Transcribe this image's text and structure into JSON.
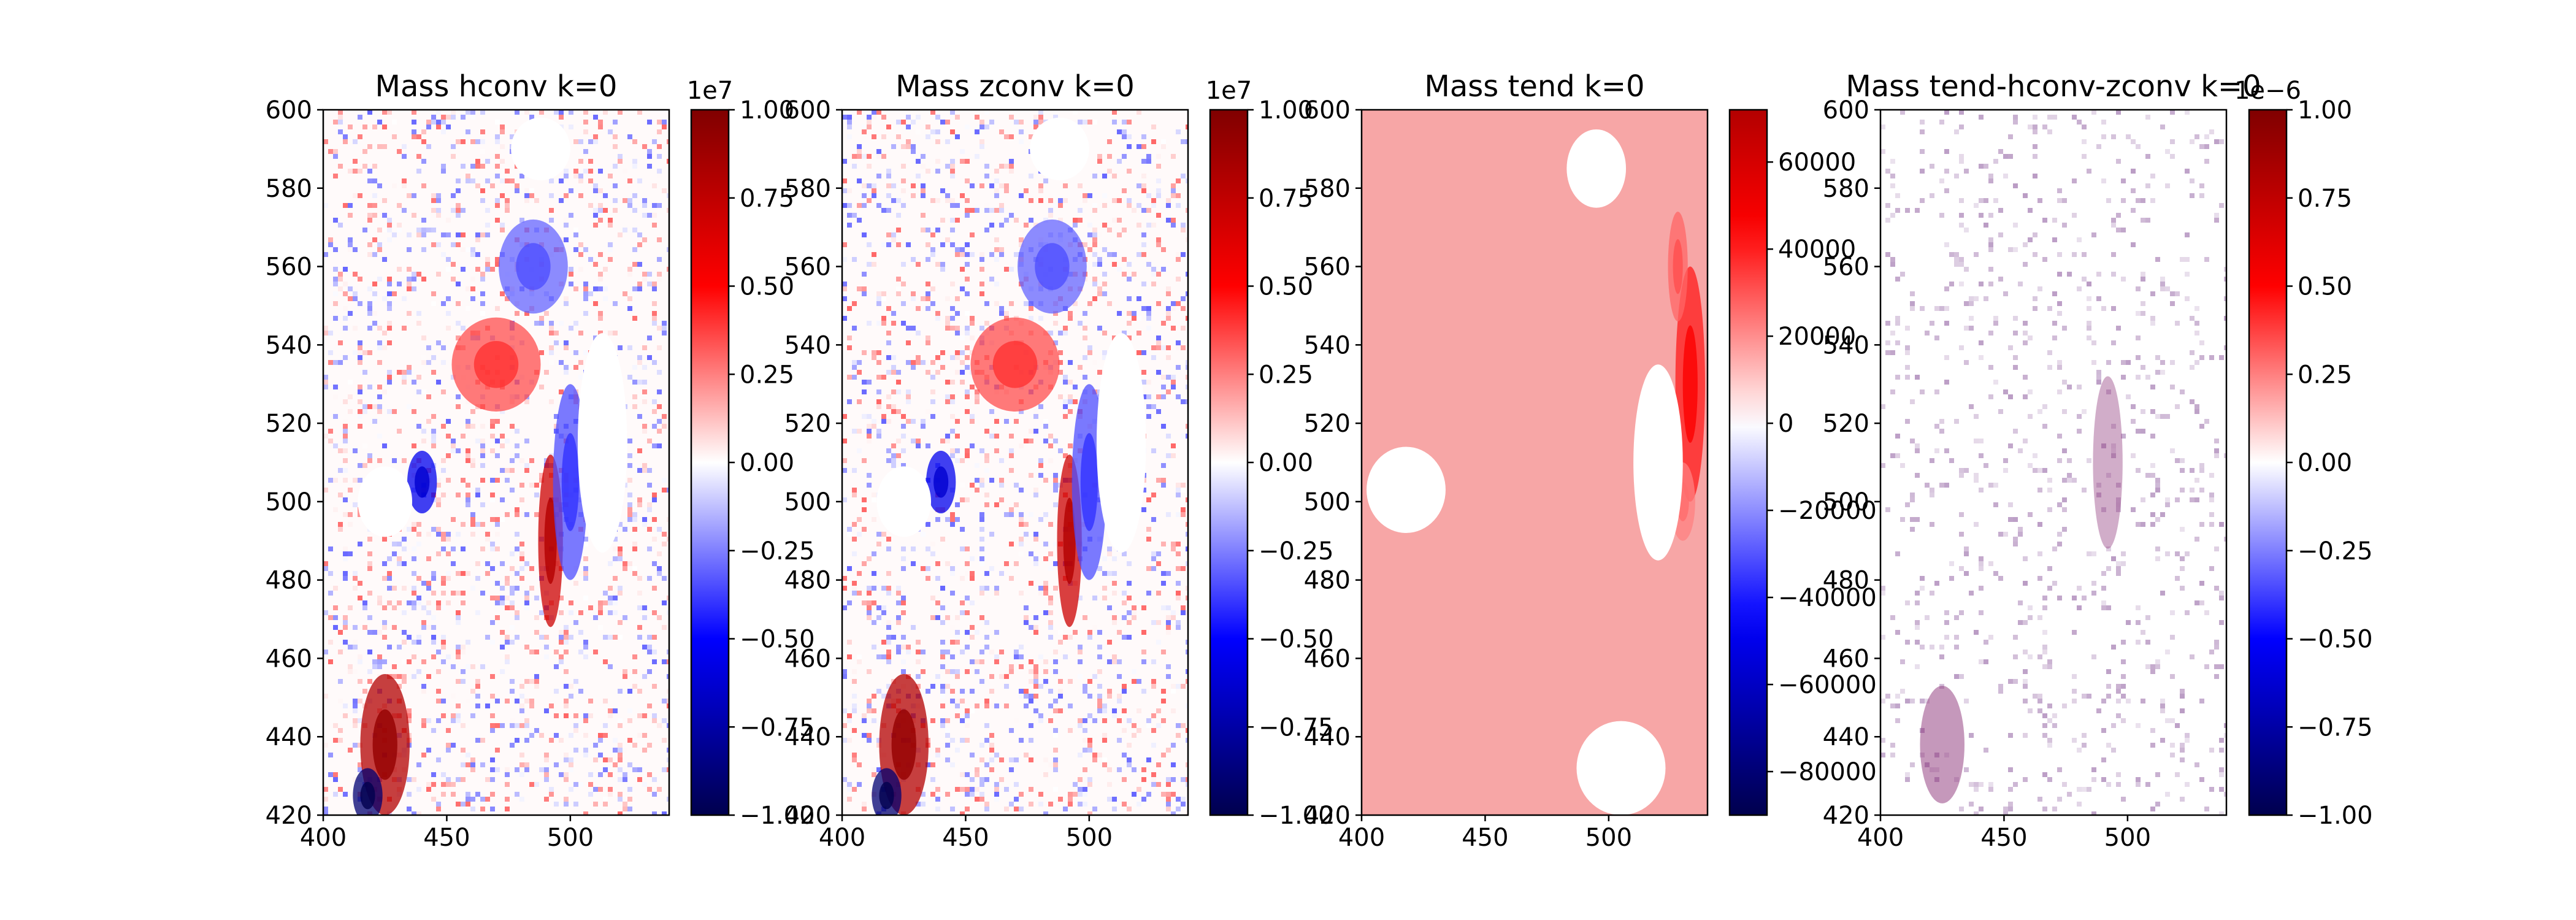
{
  "figure": {
    "background": "#ffffff"
  },
  "chart_data": [
    {
      "type": "heatmap",
      "title": "Mass hconv k=0",
      "xlabel": "",
      "ylabel": "",
      "xlim": [
        400,
        540
      ],
      "ylim": [
        420,
        600
      ],
      "x_ticks": [
        400,
        450,
        500
      ],
      "y_ticks": [
        420,
        440,
        460,
        480,
        500,
        520,
        540,
        560,
        580,
        600
      ],
      "colormap": "seismic",
      "colorbar": {
        "range": [
          -1.0,
          1.0
        ],
        "ticks": [
          -1.0,
          -0.75,
          -0.5,
          -0.25,
          0.0,
          0.25,
          0.5,
          0.75,
          1.0
        ],
        "tick_labels": [
          "−1.00",
          "−0.75",
          "−0.50",
          "−0.25",
          "0.00",
          "0.25",
          "0.50",
          "0.75",
          "1.00"
        ],
        "offset_label": "1e7"
      },
      "field": {
        "pattern": "anomaly",
        "background": "#fffafa",
        "blobs": [
          {
            "x": 425,
            "y": 438,
            "rx": 10,
            "ry": 18,
            "value": 0.8
          },
          {
            "x": 418,
            "y": 425,
            "rx": 6,
            "ry": 7,
            "value": -0.9
          },
          {
            "x": 492,
            "y": 490,
            "rx": 5,
            "ry": 22,
            "value": 0.7
          },
          {
            "x": 470,
            "y": 535,
            "rx": 18,
            "ry": 12,
            "value": 0.35
          },
          {
            "x": 485,
            "y": 560,
            "rx": 14,
            "ry": 12,
            "value": -0.3
          },
          {
            "x": 440,
            "y": 505,
            "rx": 6,
            "ry": 8,
            "value": -0.55
          },
          {
            "x": 500,
            "y": 505,
            "rx": 7,
            "ry": 25,
            "value": -0.35
          }
        ],
        "holes": [
          {
            "x": 425,
            "y": 500,
            "rx": 11,
            "ry": 9
          },
          {
            "x": 513,
            "y": 515,
            "rx": 10,
            "ry": 28
          },
          {
            "x": 488,
            "y": 590,
            "rx": 12,
            "ry": 8
          }
        ]
      }
    },
    {
      "type": "heatmap",
      "title": "Mass zconv k=0",
      "xlabel": "",
      "ylabel": "",
      "xlim": [
        400,
        540
      ],
      "ylim": [
        420,
        600
      ],
      "x_ticks": [
        400,
        450,
        500
      ],
      "y_ticks": [
        420,
        440,
        460,
        480,
        500,
        520,
        540,
        560,
        580,
        600
      ],
      "colormap": "seismic",
      "colorbar": {
        "range": [
          -1.0,
          1.0
        ],
        "ticks": [
          -1.0,
          -0.75,
          -0.5,
          -0.25,
          0.0,
          0.25,
          0.5,
          0.75,
          1.0
        ],
        "tick_labels": [
          "−1.00",
          "−0.75",
          "−0.50",
          "−0.25",
          "0.00",
          "0.25",
          "0.50",
          "0.75",
          "1.00"
        ],
        "offset_label": "1e7"
      },
      "field": {
        "pattern": "anomaly",
        "background": "#fffafa",
        "blobs": [
          {
            "x": 425,
            "y": 438,
            "rx": 10,
            "ry": 18,
            "value": 0.8
          },
          {
            "x": 418,
            "y": 425,
            "rx": 6,
            "ry": 7,
            "value": -0.9
          },
          {
            "x": 492,
            "y": 490,
            "rx": 5,
            "ry": 22,
            "value": 0.7
          },
          {
            "x": 470,
            "y": 535,
            "rx": 18,
            "ry": 12,
            "value": 0.35
          },
          {
            "x": 485,
            "y": 560,
            "rx": 14,
            "ry": 12,
            "value": -0.3
          },
          {
            "x": 440,
            "y": 505,
            "rx": 6,
            "ry": 8,
            "value": -0.55
          },
          {
            "x": 500,
            "y": 505,
            "rx": 7,
            "ry": 25,
            "value": -0.35
          }
        ],
        "holes": [
          {
            "x": 425,
            "y": 500,
            "rx": 11,
            "ry": 9
          },
          {
            "x": 513,
            "y": 515,
            "rx": 10,
            "ry": 28
          },
          {
            "x": 488,
            "y": 590,
            "rx": 12,
            "ry": 8
          }
        ]
      }
    },
    {
      "type": "heatmap",
      "title": "Mass tend k=0",
      "xlabel": "",
      "ylabel": "",
      "xlim": [
        400,
        540
      ],
      "ylim": [
        420,
        600
      ],
      "x_ticks": [
        400,
        450,
        500
      ],
      "y_ticks": [
        420,
        440,
        460,
        480,
        500,
        520,
        540,
        560,
        580,
        600
      ],
      "colormap": "seismic",
      "colorbar": {
        "range": [
          -90000,
          72000
        ],
        "ticks": [
          -80000,
          -60000,
          -40000,
          -20000,
          0,
          20000,
          40000,
          60000
        ],
        "tick_labels": [
          "−80000",
          "−60000",
          "−40000",
          "−20000",
          "0",
          "20000",
          "40000",
          "60000"
        ],
        "offset_label": ""
      },
      "field": {
        "pattern": "uniform",
        "background": "#f7a6a6",
        "blobs": [
          {
            "x": 533,
            "y": 530,
            "rx": 6,
            "ry": 30,
            "value": 0.45
          },
          {
            "x": 528,
            "y": 560,
            "rx": 4,
            "ry": 14,
            "value": 0.3
          },
          {
            "x": 530,
            "y": 500,
            "rx": 5,
            "ry": 10,
            "value": 0.25
          }
        ],
        "holes": [
          {
            "x": 418,
            "y": 503,
            "rx": 16,
            "ry": 11
          },
          {
            "x": 520,
            "y": 510,
            "rx": 10,
            "ry": 25
          },
          {
            "x": 495,
            "y": 585,
            "rx": 12,
            "ry": 10
          },
          {
            "x": 505,
            "y": 432,
            "rx": 18,
            "ry": 12
          }
        ]
      }
    },
    {
      "type": "heatmap",
      "title": "Mass tend-hconv-zconv k=0",
      "xlabel": "",
      "ylabel": "",
      "xlim": [
        400,
        540
      ],
      "ylim": [
        420,
        600
      ],
      "x_ticks": [
        400,
        450,
        500
      ],
      "y_ticks": [
        420,
        440,
        460,
        480,
        500,
        520,
        540,
        560,
        580,
        600
      ],
      "colormap": "seismic",
      "colorbar": {
        "range": [
          -1.0,
          1.0
        ],
        "ticks": [
          -1.0,
          -0.75,
          -0.5,
          -0.25,
          0.0,
          0.25,
          0.5,
          0.75,
          1.0
        ],
        "tick_labels": [
          "−1.00",
          "−0.75",
          "−0.50",
          "−0.25",
          "0.00",
          "0.25",
          "0.50",
          "0.75",
          "1.00"
        ],
        "offset_label": "1e−6"
      },
      "field": {
        "pattern": "sparse",
        "background": "#ffffff",
        "blobs": [
          {
            "x": 425,
            "y": 438,
            "rx": 9,
            "ry": 15,
            "value": 0.25
          },
          {
            "x": 492,
            "y": 510,
            "rx": 6,
            "ry": 22,
            "value": 0.15
          }
        ],
        "holes": []
      }
    }
  ]
}
